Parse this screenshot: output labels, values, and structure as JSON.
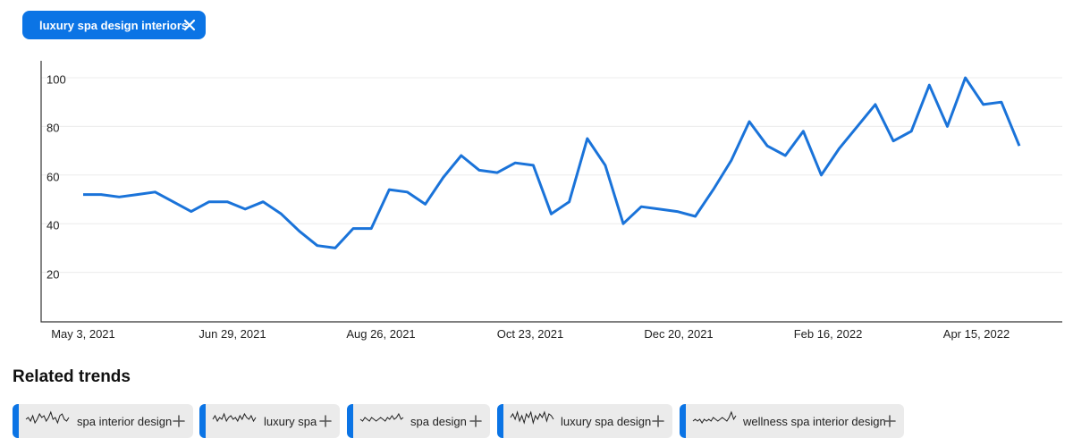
{
  "search_chip": {
    "label": "luxury spa design interiors",
    "icon": "close-icon"
  },
  "chart_data": {
    "type": "line",
    "title": "",
    "xlabel": "",
    "ylabel": "",
    "ylim": [
      0,
      100
    ],
    "yticks": [
      "20",
      "40",
      "60",
      "80",
      "100"
    ],
    "ytick_values": [
      20,
      40,
      60,
      80,
      100
    ],
    "xticks": [
      "May 3, 2021",
      "Jun 29, 2021",
      "Aug 26, 2021",
      "Oct 23, 2021",
      "Dec 20, 2021",
      "Feb 16, 2022",
      "Apr 15, 2022"
    ],
    "grid": true,
    "color": "#1a73d9",
    "series": [
      {
        "name": "",
        "values": [
          52,
          52,
          51,
          52,
          53,
          49,
          45,
          49,
          49,
          46,
          49,
          44,
          37,
          31,
          30,
          38,
          38,
          54,
          53,
          48,
          59,
          68,
          62,
          61,
          65,
          64,
          44,
          49,
          75,
          64,
          40,
          47,
          46,
          45,
          43,
          54,
          66,
          82,
          72,
          68,
          78,
          60,
          71,
          80,
          89,
          74,
          78,
          97,
          80,
          100,
          89,
          90,
          72
        ]
      }
    ]
  },
  "related": {
    "title": "Related trends",
    "items": [
      {
        "label": "spa interior design",
        "spark": [
          5,
          6,
          4,
          7,
          3,
          5,
          8,
          6,
          7,
          4,
          6,
          9,
          5,
          6,
          3,
          7,
          8,
          5,
          4,
          6
        ]
      },
      {
        "label": "luxury spa",
        "spark": [
          5,
          7,
          4,
          6,
          5,
          8,
          4,
          6,
          7,
          5,
          6,
          4,
          7,
          5,
          8,
          6,
          5,
          7,
          4,
          6
        ]
      },
      {
        "label": "spa design",
        "spark": [
          5,
          4,
          6,
          5,
          4,
          6,
          5,
          4,
          5,
          6,
          5,
          4,
          6,
          5,
          7,
          5,
          6,
          8,
          5,
          6
        ]
      },
      {
        "label": "luxury spa design",
        "spark": [
          6,
          8,
          5,
          9,
          4,
          7,
          3,
          8,
          6,
          9,
          3,
          7,
          5,
          8,
          6,
          9,
          4,
          8,
          7,
          5
        ]
      },
      {
        "label": "wellness spa interior design",
        "spark": [
          4,
          5,
          4,
          5,
          3,
          5,
          4,
          5,
          4,
          6,
          5,
          4,
          5,
          6,
          5,
          4,
          6,
          9,
          5,
          7
        ]
      }
    ]
  }
}
